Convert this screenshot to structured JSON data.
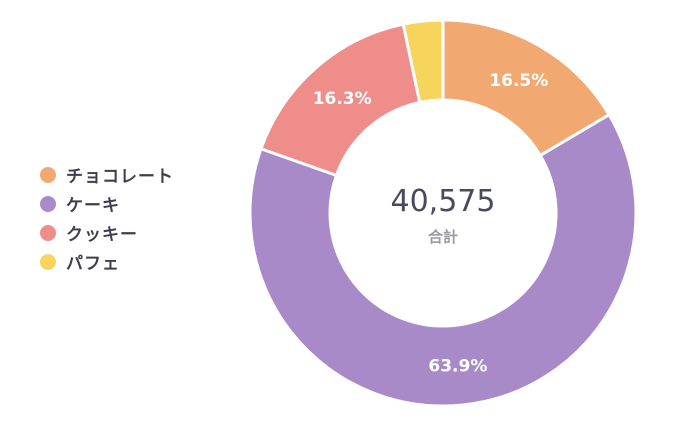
{
  "chart_data": {
    "type": "pie",
    "donut": true,
    "categories": [
      "チョコレート",
      "ケーキ",
      "クッキー",
      "パフェ"
    ],
    "values": [
      16.5,
      63.9,
      16.3,
      3.3
    ],
    "data_labels": [
      "16.5%",
      "63.9%",
      "16.3%",
      ""
    ],
    "colors": [
      "#f2a971",
      "#a98ac8",
      "#ef8d8b",
      "#f7d45c"
    ],
    "legend_position": "left",
    "center": {
      "value": "40,575",
      "label": "合計"
    }
  }
}
